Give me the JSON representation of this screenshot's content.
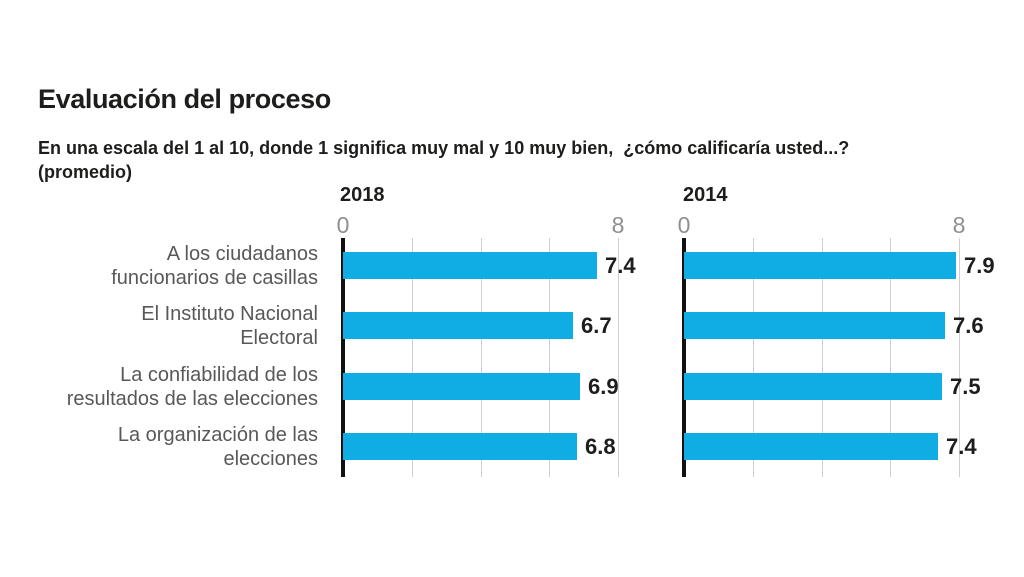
{
  "header": {
    "title": "Evaluación del proceso",
    "subtitle_line1": "En una escala del 1 al 10, donde 1 significa muy mal y 10 muy bien,  ¿cómo calificaría usted...?",
    "subtitle_line2": "(promedio)"
  },
  "chart_data": {
    "type": "bar",
    "orientation": "horizontal",
    "title": "Evaluación del proceso",
    "subtitle": "En una escala del 1 al 10, donde 1 significa muy mal y 10 muy bien, ¿cómo calificaría usted...? (promedio)",
    "categories": [
      "A los ciudadanos funcionarios de casillas",
      "El Instituto Nacional Electoral",
      "La confiabilidad de los resultados de las elecciones",
      "La organización de las elecciones"
    ],
    "category_lines": [
      [
        "A los ciudadanos",
        "funcionarios de casillas"
      ],
      [
        "El Instituto Nacional",
        "Electoral"
      ],
      [
        "La confiabilidad de los",
        "resultados de las elecciones"
      ],
      [
        "La organización de las",
        "elecciones"
      ]
    ],
    "series": [
      {
        "name": "2018",
        "values": [
          7.4,
          6.7,
          6.9,
          6.8
        ]
      },
      {
        "name": "2014",
        "values": [
          7.9,
          7.6,
          7.5,
          7.4
        ]
      }
    ],
    "xlim": [
      0,
      8
    ],
    "x_ticks_labeled": [
      0,
      8
    ],
    "gridlines": [
      0,
      2,
      4,
      6,
      8
    ],
    "grid": true,
    "legend_position": "panel-headers-top",
    "colors": {
      "bar": "#10ade4",
      "axis": "#111111",
      "grid": "#cfcfcf",
      "tick_label": "#8f8f8f",
      "category_label": "#58585a",
      "value_label": "#1d1d1b",
      "text": "#1d1d1b",
      "background": "#ffffff"
    }
  }
}
